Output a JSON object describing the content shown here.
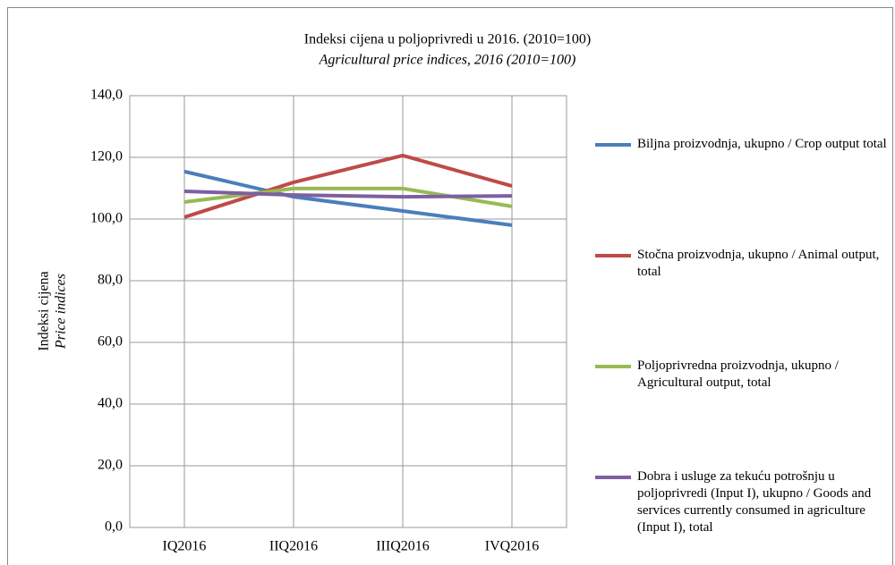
{
  "chart_data": {
    "type": "line",
    "title": "Indeksi cijena u poljoprivredi u 2016. (2010=100)",
    "subtitle": "Agricultural price indices, 2016 (2010=100)",
    "ylabel": "Indeksi cijena",
    "ylabel_sub": "Price indices",
    "categories": [
      "IQ2016",
      "IIQ2016",
      "IIIQ2016",
      "IVQ2016"
    ],
    "series": [
      {
        "name": "Biljna proizvodnja, ukupno / Crop output total",
        "color": "#4a7ebb",
        "values": [
          115.4,
          107.2,
          102.6,
          98.0
        ]
      },
      {
        "name": "Stočna proizvodnja, ukupno / Animal output, total",
        "color": "#be4b48",
        "values": [
          100.6,
          111.9,
          120.6,
          110.7
        ]
      },
      {
        "name": "Poljoprivredna proizvodnja, ukupno / Agricultural output, total",
        "color": "#98b954",
        "values": [
          105.5,
          109.9,
          109.9,
          104.1
        ]
      },
      {
        "name": "Dobra i usluge za tekuću potrošnju u poljoprivredi (Input I), ukupno / Goods and services currently consumed in agriculture (Input I), total",
        "color": "#7d60a0",
        "values": [
          109.0,
          107.8,
          107.2,
          107.5
        ]
      }
    ],
    "ylim": [
      0,
      140
    ],
    "yticks": [
      {
        "value": 0,
        "label": "0,0"
      },
      {
        "value": 20,
        "label": "20,0"
      },
      {
        "value": 40,
        "label": "40,0"
      },
      {
        "value": 60,
        "label": "60,0"
      },
      {
        "value": 80,
        "label": "80,0"
      },
      {
        "value": 100,
        "label": "100,0"
      },
      {
        "value": 120,
        "label": "120,0"
      },
      {
        "value": 140,
        "label": "140,0"
      }
    ],
    "grid": true,
    "legend": "right"
  }
}
